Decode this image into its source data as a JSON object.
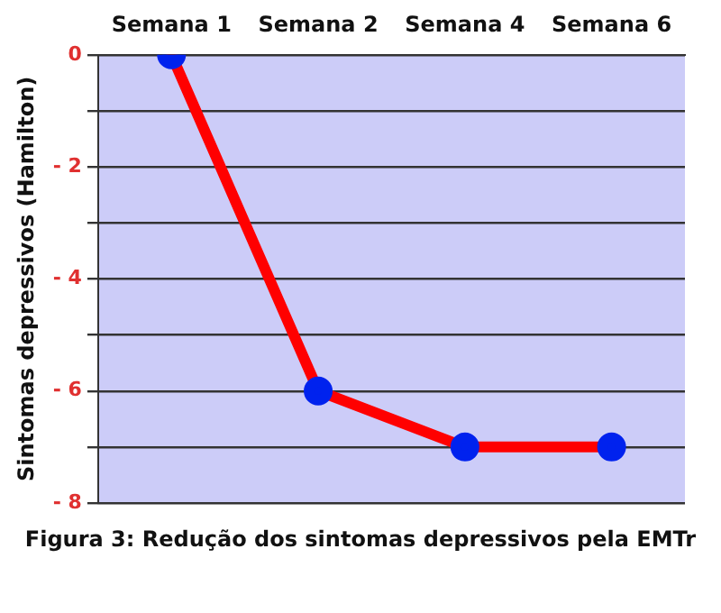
{
  "chart_data": {
    "type": "line",
    "categories": [
      "Semana 1",
      "Semana 2",
      "Semana 4",
      "Semana 6"
    ],
    "series": [
      {
        "color": "#ff0000",
        "colors": [
          "#0022ee",
          "#0022ee",
          "#0022ee",
          "#0022ee"
        ],
        "values": [
          0,
          -6,
          -7,
          -7
        ]
      }
    ],
    "ylabel": "Sintomas depressivos (Hamilton)",
    "ylim": [
      -8,
      0
    ],
    "yticks": [
      0,
      {
        "value": -1,
        "label": null
      },
      {
        "value": -2,
        "label": "- 2"
      },
      {
        "value": -3,
        "label": null
      },
      {
        "value": -4,
        "label": "- 4"
      },
      {
        "value": -5,
        "label": null
      },
      {
        "value": -6,
        "label": "- 6"
      },
      {
        "value": -7,
        "label": null
      },
      {
        "value": -8,
        "label": "- 8"
      }
    ],
    "grid": "y",
    "marker": "circle",
    "line_style": "solid",
    "legend": false,
    "annotations": [
      "Figura 3: Redução dos sintomas depressivos pela EMTr"
    ]
  }
}
